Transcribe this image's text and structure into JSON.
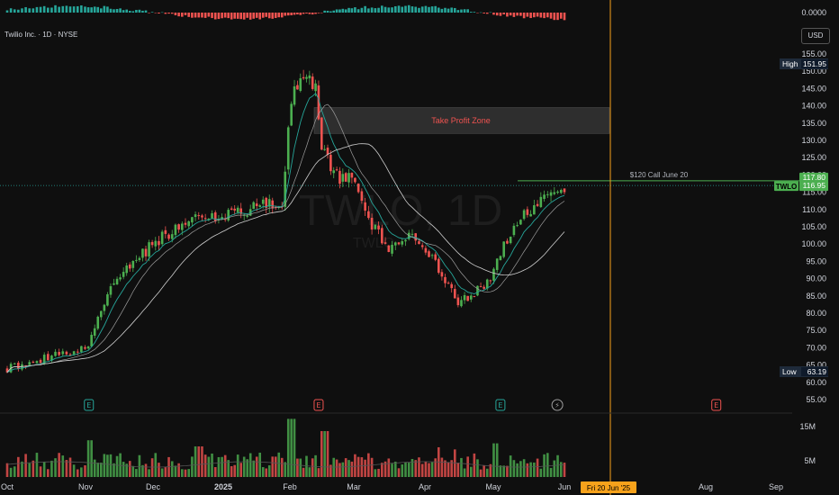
{
  "header": {
    "title": "Twilio Inc. · 1D · NYSE"
  },
  "currency_button": "USD",
  "watermark": {
    "big": "TWLO, 1D",
    "small": "TWLO"
  },
  "colors": {
    "up": "#26a69a",
    "up_bright": "#4caf50",
    "down": "#ef5350",
    "ema_fast": "#26a69a",
    "ma_slow": "#cfcfcf",
    "cursor": "#f7a21b",
    "zone": "#3a3a3a",
    "zone_text": "#ef5350",
    "hline": "#4caf50"
  },
  "annotations": {
    "zone_label": "Take Profit Zone",
    "call_label": "$120 Call June 20",
    "symbol_tag": "TWLO",
    "last_price": "116.95",
    "call_price": "117.80",
    "high_label": "High",
    "high_value": "151.95",
    "low_label": "Low",
    "low_value": "63.19",
    "cursor_date": "Fri 20 Jun '25"
  },
  "event_markers": [
    {
      "label": "E",
      "kind": "earnings-beat",
      "month_index": 1.05
    },
    {
      "label": "E",
      "kind": "earnings-miss",
      "month_index": 4.45
    },
    {
      "label": "E",
      "kind": "earnings-beat",
      "month_index": 7.1
    },
    {
      "label": "⚡",
      "kind": "dividend-flash",
      "month_index": 7.9
    },
    {
      "label": "E",
      "kind": "earnings-miss",
      "month_index": 10.15
    }
  ],
  "chart_data": {
    "type": "candlestick",
    "x_ticks": [
      "Oct",
      "Nov",
      "Dec",
      "2025",
      "Feb",
      "Mar",
      "Apr",
      "May",
      "Jun",
      "Aug",
      "Sep"
    ],
    "y_ticks": [
      "155.00",
      "150.00",
      "145.00",
      "140.00",
      "135.00",
      "130.00",
      "125.00",
      "120.00",
      "115.00",
      "110.00",
      "105.00",
      "100.00",
      "95.00",
      "90.00",
      "85.00",
      "80.00",
      "75.00",
      "70.00",
      "65.00",
      "60.00",
      "55.00"
    ],
    "volume_ticks": [
      "15M",
      "5M"
    ],
    "oscillator_tick": "0.0000",
    "ylim": [
      53,
      157
    ],
    "take_profit_zone": [
      132,
      139.5
    ],
    "call_strike_line": 117.8,
    "last_close": 116.95,
    "high": 151.95,
    "low": 63.19,
    "price_path": [
      [
        0,
        64
      ],
      [
        0.5,
        67
      ],
      [
        1.0,
        70
      ],
      [
        1.05,
        71
      ],
      [
        1.2,
        80
      ],
      [
        1.5,
        91
      ],
      [
        2.0,
        100
      ],
      [
        2.5,
        107
      ],
      [
        3.0,
        108
      ],
      [
        3.5,
        111
      ],
      [
        3.9,
        112
      ],
      [
        4.0,
        141
      ],
      [
        4.2,
        148
      ],
      [
        4.4,
        145
      ],
      [
        4.5,
        128
      ],
      [
        4.7,
        120
      ],
      [
        5.0,
        118
      ],
      [
        5.2,
        107
      ],
      [
        5.5,
        98
      ],
      [
        5.8,
        104
      ],
      [
        6.0,
        99
      ],
      [
        6.3,
        90
      ],
      [
        6.5,
        83
      ],
      [
        6.8,
        87
      ],
      [
        7.0,
        92
      ],
      [
        7.2,
        102
      ],
      [
        7.5,
        110
      ],
      [
        7.8,
        115
      ],
      [
        8.0,
        116.95
      ]
    ]
  }
}
